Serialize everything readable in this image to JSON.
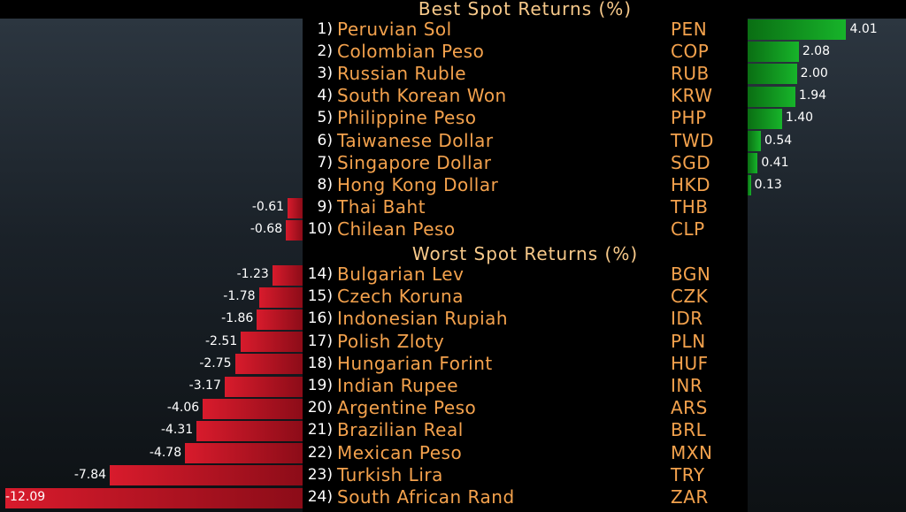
{
  "chart_data": {
    "type": "bar",
    "orientation": "horizontal",
    "sections": [
      {
        "title": "Best Spot Returns (%)",
        "rows": [
          {
            "rank": "1)",
            "name": "Peruvian Sol",
            "code": "PEN",
            "value": 4.01,
            "label": "4.01"
          },
          {
            "rank": "2)",
            "name": "Colombian Peso",
            "code": "COP",
            "value": 2.08,
            "label": "2.08"
          },
          {
            "rank": "3)",
            "name": "Russian Ruble",
            "code": "RUB",
            "value": 2.0,
            "label": "2.00"
          },
          {
            "rank": "4)",
            "name": "South Korean Won",
            "code": "KRW",
            "value": 1.94,
            "label": "1.94"
          },
          {
            "rank": "5)",
            "name": "Philippine Peso",
            "code": "PHP",
            "value": 1.4,
            "label": "1.40"
          },
          {
            "rank": "6)",
            "name": "Taiwanese Dollar",
            "code": "TWD",
            "value": 0.54,
            "label": "0.54"
          },
          {
            "rank": "7)",
            "name": "Singapore Dollar",
            "code": "SGD",
            "value": 0.41,
            "label": "0.41"
          },
          {
            "rank": "8)",
            "name": "Hong Kong Dollar",
            "code": "HKD",
            "value": 0.13,
            "label": "0.13"
          },
          {
            "rank": "9)",
            "name": "Thai Baht",
            "code": "THB",
            "value": -0.61,
            "label": "-0.61"
          },
          {
            "rank": "10)",
            "name": "Chilean Peso",
            "code": "CLP",
            "value": -0.68,
            "label": "-0.68"
          }
        ]
      },
      {
        "title": "Worst Spot Returns (%)",
        "rows": [
          {
            "rank": "14)",
            "name": "Bulgarian Lev",
            "code": "BGN",
            "value": -1.23,
            "label": "-1.23"
          },
          {
            "rank": "15)",
            "name": "Czech Koruna",
            "code": "CZK",
            "value": -1.78,
            "label": "-1.78"
          },
          {
            "rank": "16)",
            "name": "Indonesian Rupiah",
            "code": "IDR",
            "value": -1.86,
            "label": "-1.86"
          },
          {
            "rank": "17)",
            "name": "Polish Zloty",
            "code": "PLN",
            "value": -2.51,
            "label": "-2.51"
          },
          {
            "rank": "18)",
            "name": "Hungarian Forint",
            "code": "HUF",
            "value": -2.75,
            "label": "-2.75"
          },
          {
            "rank": "19)",
            "name": "Indian Rupee",
            "code": "INR",
            "value": -3.17,
            "label": "-3.17"
          },
          {
            "rank": "20)",
            "name": "Argentine Peso",
            "code": "ARS",
            "value": -4.06,
            "label": "-4.06"
          },
          {
            "rank": "21)",
            "name": "Brazilian Real",
            "code": "BRL",
            "value": -4.31,
            "label": "-4.31"
          },
          {
            "rank": "22)",
            "name": "Mexican Peso",
            "code": "MXN",
            "value": -4.78,
            "label": "-4.78"
          },
          {
            "rank": "23)",
            "name": "Turkish Lira",
            "code": "TRY",
            "value": -7.84,
            "label": "-7.84"
          },
          {
            "rank": "24)",
            "name": "South African Rand",
            "code": "ZAR",
            "value": -12.09,
            "label": "-12.09"
          }
        ]
      }
    ],
    "colors": {
      "positive": "#17b42a",
      "negative": "#b8101f",
      "name_text": "#f4a24d",
      "title_text": "#f7c98a"
    }
  }
}
